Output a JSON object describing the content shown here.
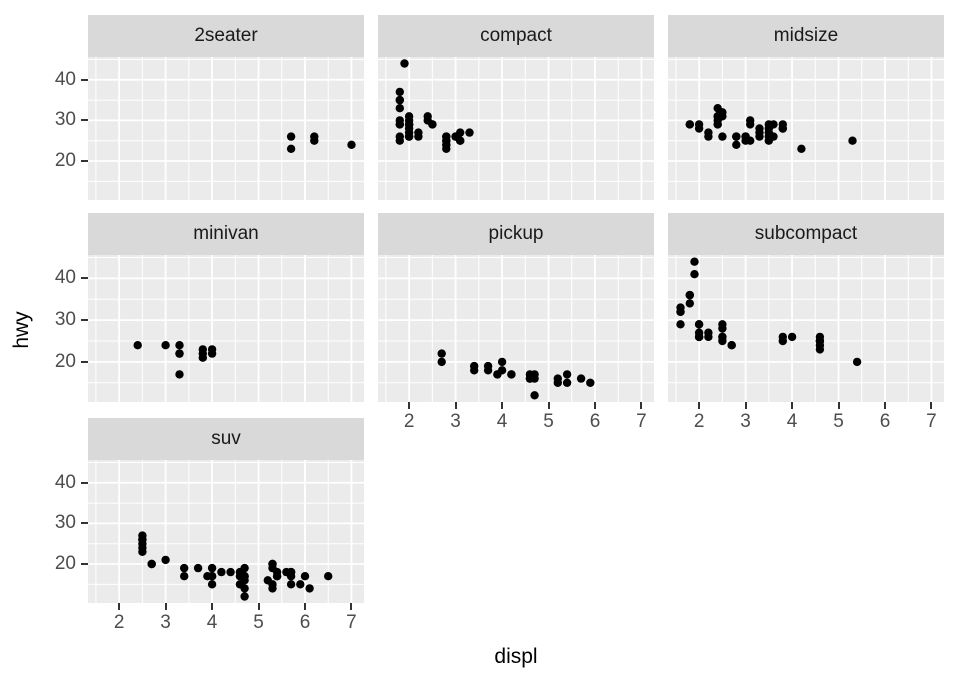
{
  "figure": {
    "background_color": "#FFFFFF",
    "description": "Faceted scatter plot of highway mileage (hwy) versus engine displacement (displ) by vehicle class"
  },
  "colors": {
    "panel_background": "#EBEBEB",
    "strip_background": "#D9D9D9",
    "gridline": "#FFFFFF",
    "point": "#000000",
    "tick_label": "#4D4D4D",
    "tick_mark": "#333333",
    "strip_text": "#1A1A1A",
    "axis_title": "#000000"
  },
  "chart_data": {
    "type": "scatter",
    "title": "",
    "xlabel": "displ",
    "ylabel": "hwy",
    "grid": "on",
    "legend": "none",
    "x_ticks": [
      2,
      3,
      4,
      5,
      6,
      7
    ],
    "y_ticks": [
      20,
      30,
      40
    ],
    "x_minor_ticks": [
      1.5,
      2.5,
      3.5,
      4.5,
      5.5,
      6.5
    ],
    "y_minor_ticks": [
      15,
      25,
      35,
      45
    ],
    "x_domain": [
      1.33,
      7.27
    ],
    "y_domain": [
      10.4,
      45.6
    ],
    "facet_labels": [
      "2seater",
      "compact",
      "midsize",
      "minivan",
      "pickup",
      "subcompact",
      "suv"
    ],
    "facets": [
      {
        "label": "2seater",
        "row": 0,
        "col": 0,
        "points": [
          [
            5.7,
            26
          ],
          [
            5.7,
            23
          ],
          [
            6.2,
            26
          ],
          [
            6.2,
            25
          ],
          [
            7.0,
            24
          ]
        ]
      },
      {
        "label": "compact",
        "row": 0,
        "col": 1,
        "points": [
          [
            1.8,
            29
          ],
          [
            1.8,
            29
          ],
          [
            2.0,
            31
          ],
          [
            2.0,
            30
          ],
          [
            2.8,
            26
          ],
          [
            2.8,
            26
          ],
          [
            3.1,
            27
          ],
          [
            1.8,
            26
          ],
          [
            1.8,
            25
          ],
          [
            2.0,
            28
          ],
          [
            2.0,
            27
          ],
          [
            2.8,
            25
          ],
          [
            2.8,
            25
          ],
          [
            3.1,
            25
          ],
          [
            3.1,
            25
          ],
          [
            2.2,
            26
          ],
          [
            2.2,
            27
          ],
          [
            2.4,
            30
          ],
          [
            2.4,
            31
          ],
          [
            3.0,
            26
          ],
          [
            3.0,
            26
          ],
          [
            3.3,
            27
          ],
          [
            1.8,
            30
          ],
          [
            1.8,
            33
          ],
          [
            1.8,
            35
          ],
          [
            1.8,
            35
          ],
          [
            1.8,
            37
          ],
          [
            2.0,
            29
          ],
          [
            2.0,
            26
          ],
          [
            2.0,
            29
          ],
          [
            2.8,
            24
          ],
          [
            1.9,
            44
          ],
          [
            2.0,
            29
          ],
          [
            2.0,
            29
          ],
          [
            2.0,
            26
          ],
          [
            2.5,
            29
          ],
          [
            2.5,
            29
          ],
          [
            2.8,
            23
          ],
          [
            2.8,
            24
          ]
        ]
      },
      {
        "label": "midsize",
        "row": 0,
        "col": 2,
        "points": [
          [
            2.8,
            24
          ],
          [
            3.1,
            25
          ],
          [
            4.2,
            23
          ],
          [
            2.4,
            30
          ],
          [
            2.4,
            33
          ],
          [
            3.1,
            29
          ],
          [
            3.5,
            29
          ],
          [
            3.6,
            29
          ],
          [
            2.4,
            29
          ],
          [
            2.4,
            31
          ],
          [
            2.5,
            26
          ],
          [
            3.3,
            26
          ],
          [
            3.3,
            28
          ],
          [
            3.3,
            27
          ],
          [
            2.4,
            29
          ],
          [
            2.4,
            31
          ],
          [
            2.5,
            31
          ],
          [
            2.5,
            32
          ],
          [
            3.5,
            26
          ],
          [
            3.5,
            27
          ],
          [
            3.0,
            26
          ],
          [
            3.0,
            25
          ],
          [
            3.5,
            25
          ],
          [
            3.1,
            30
          ],
          [
            3.8,
            28
          ],
          [
            3.8,
            29
          ],
          [
            3.8,
            28
          ],
          [
            5.3,
            25
          ],
          [
            2.2,
            26
          ],
          [
            2.2,
            27
          ],
          [
            2.4,
            31
          ],
          [
            3.0,
            26
          ],
          [
            3.0,
            26
          ],
          [
            3.5,
            28
          ],
          [
            1.8,
            29
          ],
          [
            1.8,
            29
          ],
          [
            2.0,
            28
          ],
          [
            2.0,
            29
          ],
          [
            2.8,
            26
          ],
          [
            2.8,
            26
          ],
          [
            3.6,
            26
          ]
        ]
      },
      {
        "label": "minivan",
        "row": 1,
        "col": 0,
        "points": [
          [
            2.4,
            24
          ],
          [
            3.0,
            24
          ],
          [
            3.3,
            24
          ],
          [
            3.3,
            22
          ],
          [
            3.3,
            22
          ],
          [
            3.3,
            17
          ],
          [
            3.8,
            22
          ],
          [
            3.8,
            21
          ],
          [
            3.8,
            23
          ],
          [
            4.0,
            23
          ],
          [
            4.0,
            22
          ]
        ]
      },
      {
        "label": "pickup",
        "row": 1,
        "col": 1,
        "points": [
          [
            2.7,
            20
          ],
          [
            2.7,
            22
          ],
          [
            3.4,
            19
          ],
          [
            3.4,
            18
          ],
          [
            3.7,
            19
          ],
          [
            3.7,
            18
          ],
          [
            3.9,
            17
          ],
          [
            3.9,
            17
          ],
          [
            4.0,
            20
          ],
          [
            4.0,
            18
          ],
          [
            4.2,
            17
          ],
          [
            4.2,
            17
          ],
          [
            4.6,
            16
          ],
          [
            4.6,
            17
          ],
          [
            4.6,
            16
          ],
          [
            4.7,
            12
          ],
          [
            4.7,
            16
          ],
          [
            4.7,
            17
          ],
          [
            5.2,
            15
          ],
          [
            5.2,
            16
          ],
          [
            5.4,
            15
          ],
          [
            5.4,
            17
          ],
          [
            5.7,
            16
          ],
          [
            5.9,
            15
          ]
        ]
      },
      {
        "label": "subcompact",
        "row": 1,
        "col": 2,
        "points": [
          [
            1.6,
            33
          ],
          [
            1.6,
            32
          ],
          [
            1.6,
            32
          ],
          [
            1.6,
            29
          ],
          [
            1.8,
            36
          ],
          [
            1.8,
            36
          ],
          [
            1.8,
            34
          ],
          [
            2.0,
            29
          ],
          [
            2.0,
            26
          ],
          [
            2.0,
            27
          ],
          [
            2.0,
            26
          ],
          [
            2.7,
            24
          ],
          [
            2.7,
            24
          ],
          [
            2.2,
            26
          ],
          [
            2.2,
            27
          ],
          [
            2.5,
            26
          ],
          [
            2.5,
            25
          ],
          [
            2.5,
            26
          ],
          [
            1.9,
            44
          ],
          [
            1.9,
            41
          ],
          [
            2.0,
            29
          ],
          [
            2.0,
            26
          ],
          [
            2.5,
            28
          ],
          [
            2.5,
            29
          ],
          [
            3.8,
            26
          ],
          [
            3.8,
            25
          ],
          [
            4.0,
            26
          ],
          [
            4.6,
            23
          ],
          [
            4.6,
            24
          ],
          [
            4.6,
            25
          ],
          [
            4.6,
            25
          ],
          [
            4.6,
            26
          ],
          [
            5.4,
            20
          ]
        ]
      },
      {
        "label": "suv",
        "row": 2,
        "col": 0,
        "points": [
          [
            2.5,
            27
          ],
          [
            2.5,
            26
          ],
          [
            2.5,
            26
          ],
          [
            2.5,
            25
          ],
          [
            2.5,
            24
          ],
          [
            2.5,
            23
          ],
          [
            2.7,
            20
          ],
          [
            2.7,
            20
          ],
          [
            3.0,
            21
          ],
          [
            3.4,
            17
          ],
          [
            3.4,
            19
          ],
          [
            3.7,
            19
          ],
          [
            3.9,
            17
          ],
          [
            4.0,
            17
          ],
          [
            4.0,
            17
          ],
          [
            4.0,
            19
          ],
          [
            4.0,
            15
          ],
          [
            4.2,
            18
          ],
          [
            4.4,
            18
          ],
          [
            4.6,
            15
          ],
          [
            4.6,
            17
          ],
          [
            4.6,
            18
          ],
          [
            4.7,
            12
          ],
          [
            4.7,
            14
          ],
          [
            4.7,
            16
          ],
          [
            4.7,
            17
          ],
          [
            4.7,
            17
          ],
          [
            4.7,
            19
          ],
          [
            5.2,
            16
          ],
          [
            5.3,
            14
          ],
          [
            5.3,
            15
          ],
          [
            5.3,
            19
          ],
          [
            5.3,
            20
          ],
          [
            5.3,
            20
          ],
          [
            5.4,
            17
          ],
          [
            5.4,
            17
          ],
          [
            5.4,
            18
          ],
          [
            5.6,
            18
          ],
          [
            5.7,
            15
          ],
          [
            5.7,
            17
          ],
          [
            5.7,
            18
          ],
          [
            5.7,
            18
          ],
          [
            5.9,
            15
          ],
          [
            6.0,
            17
          ],
          [
            6.1,
            14
          ],
          [
            6.5,
            17
          ]
        ]
      }
    ]
  }
}
